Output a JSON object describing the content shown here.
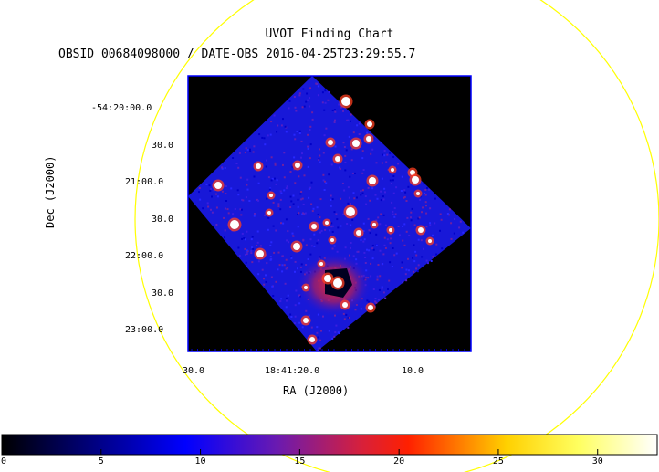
{
  "chart_data": {
    "type": "heatmap",
    "title": "UVOT Finding Chart",
    "subtitle": "OBSID 00684098000 / DATE-OBS 2016-04-25T23:29:55.7",
    "xlabel": "RA (J2000)",
    "ylabel": "Dec (J2000)",
    "x_ticks": [
      "30.0",
      "18:41:20.0",
      "10.0"
    ],
    "y_ticks": [
      "-54:20:00.0",
      "30.0",
      "21:00.0",
      "30.0",
      "22:00.0",
      "30.0",
      "23:00.0"
    ],
    "colorbar": {
      "ticks": [
        0,
        5,
        10,
        15,
        20,
        25,
        30
      ],
      "range": [
        0,
        33
      ],
      "colors": [
        "#000000",
        "#0000ff",
        "#ff0000",
        "#ffff00",
        "#ffffff"
      ]
    },
    "circle_color": "#ffff00",
    "frame_color": "#0000ff"
  }
}
